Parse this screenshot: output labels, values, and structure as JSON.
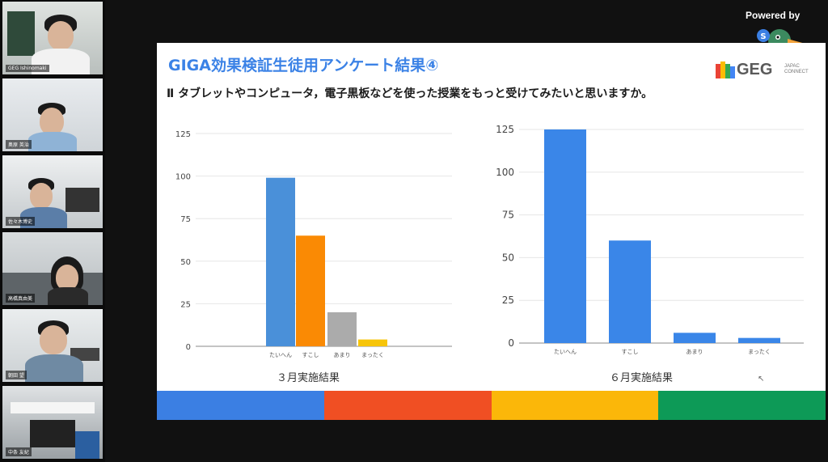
{
  "meeting": {
    "participants": [
      {
        "name": "GEG Ishinomaki"
      },
      {
        "name": "奥原 英治"
      },
      {
        "name": "佐々木博史"
      },
      {
        "name": "高橋真由美"
      },
      {
        "name": "朝田 望"
      },
      {
        "name": "中条 友紀"
      }
    ],
    "powered_by": "Powered by"
  },
  "slide": {
    "title": "GIGA効果検証生徒用アンケート結果④",
    "question": "Ⅱ タブレットやコンピュータ，電子黒板などを使った授業をもっと受けてみたいと思いますか。",
    "logo": {
      "main": "GEG",
      "small_1": "JAPAC",
      "small_2": "CONNECT"
    },
    "colorbar": [
      "#3b7fe3",
      "#f04f23",
      "#fbb709",
      "#0d9a57"
    ]
  },
  "chart_data": [
    {
      "type": "bar",
      "title": "３月実施結果",
      "categories": [
        "たいへん",
        "すこし",
        "あまり",
        "まったく"
      ],
      "values": [
        99,
        65,
        20,
        4
      ],
      "colors": [
        "#4a90d9",
        "#fa8a04",
        "#ababab",
        "#f7c50a"
      ],
      "yticks": [
        "0",
        "25",
        "50",
        "75",
        "100",
        "125"
      ],
      "ylim": [
        0,
        125
      ],
      "grid": true
    },
    {
      "type": "bar",
      "title": "６月実施結果",
      "categories": [
        "たいへん",
        "すこし",
        "あまり",
        "まったく"
      ],
      "values": [
        125,
        60,
        6,
        3
      ],
      "colors": [
        "#3a86e8",
        "#3a86e8",
        "#3a86e8",
        "#3a86e8"
      ],
      "yticks": [
        "0",
        "25",
        "50",
        "75",
        "100",
        "125"
      ],
      "ylim": [
        0,
        125
      ],
      "grid": true
    }
  ]
}
